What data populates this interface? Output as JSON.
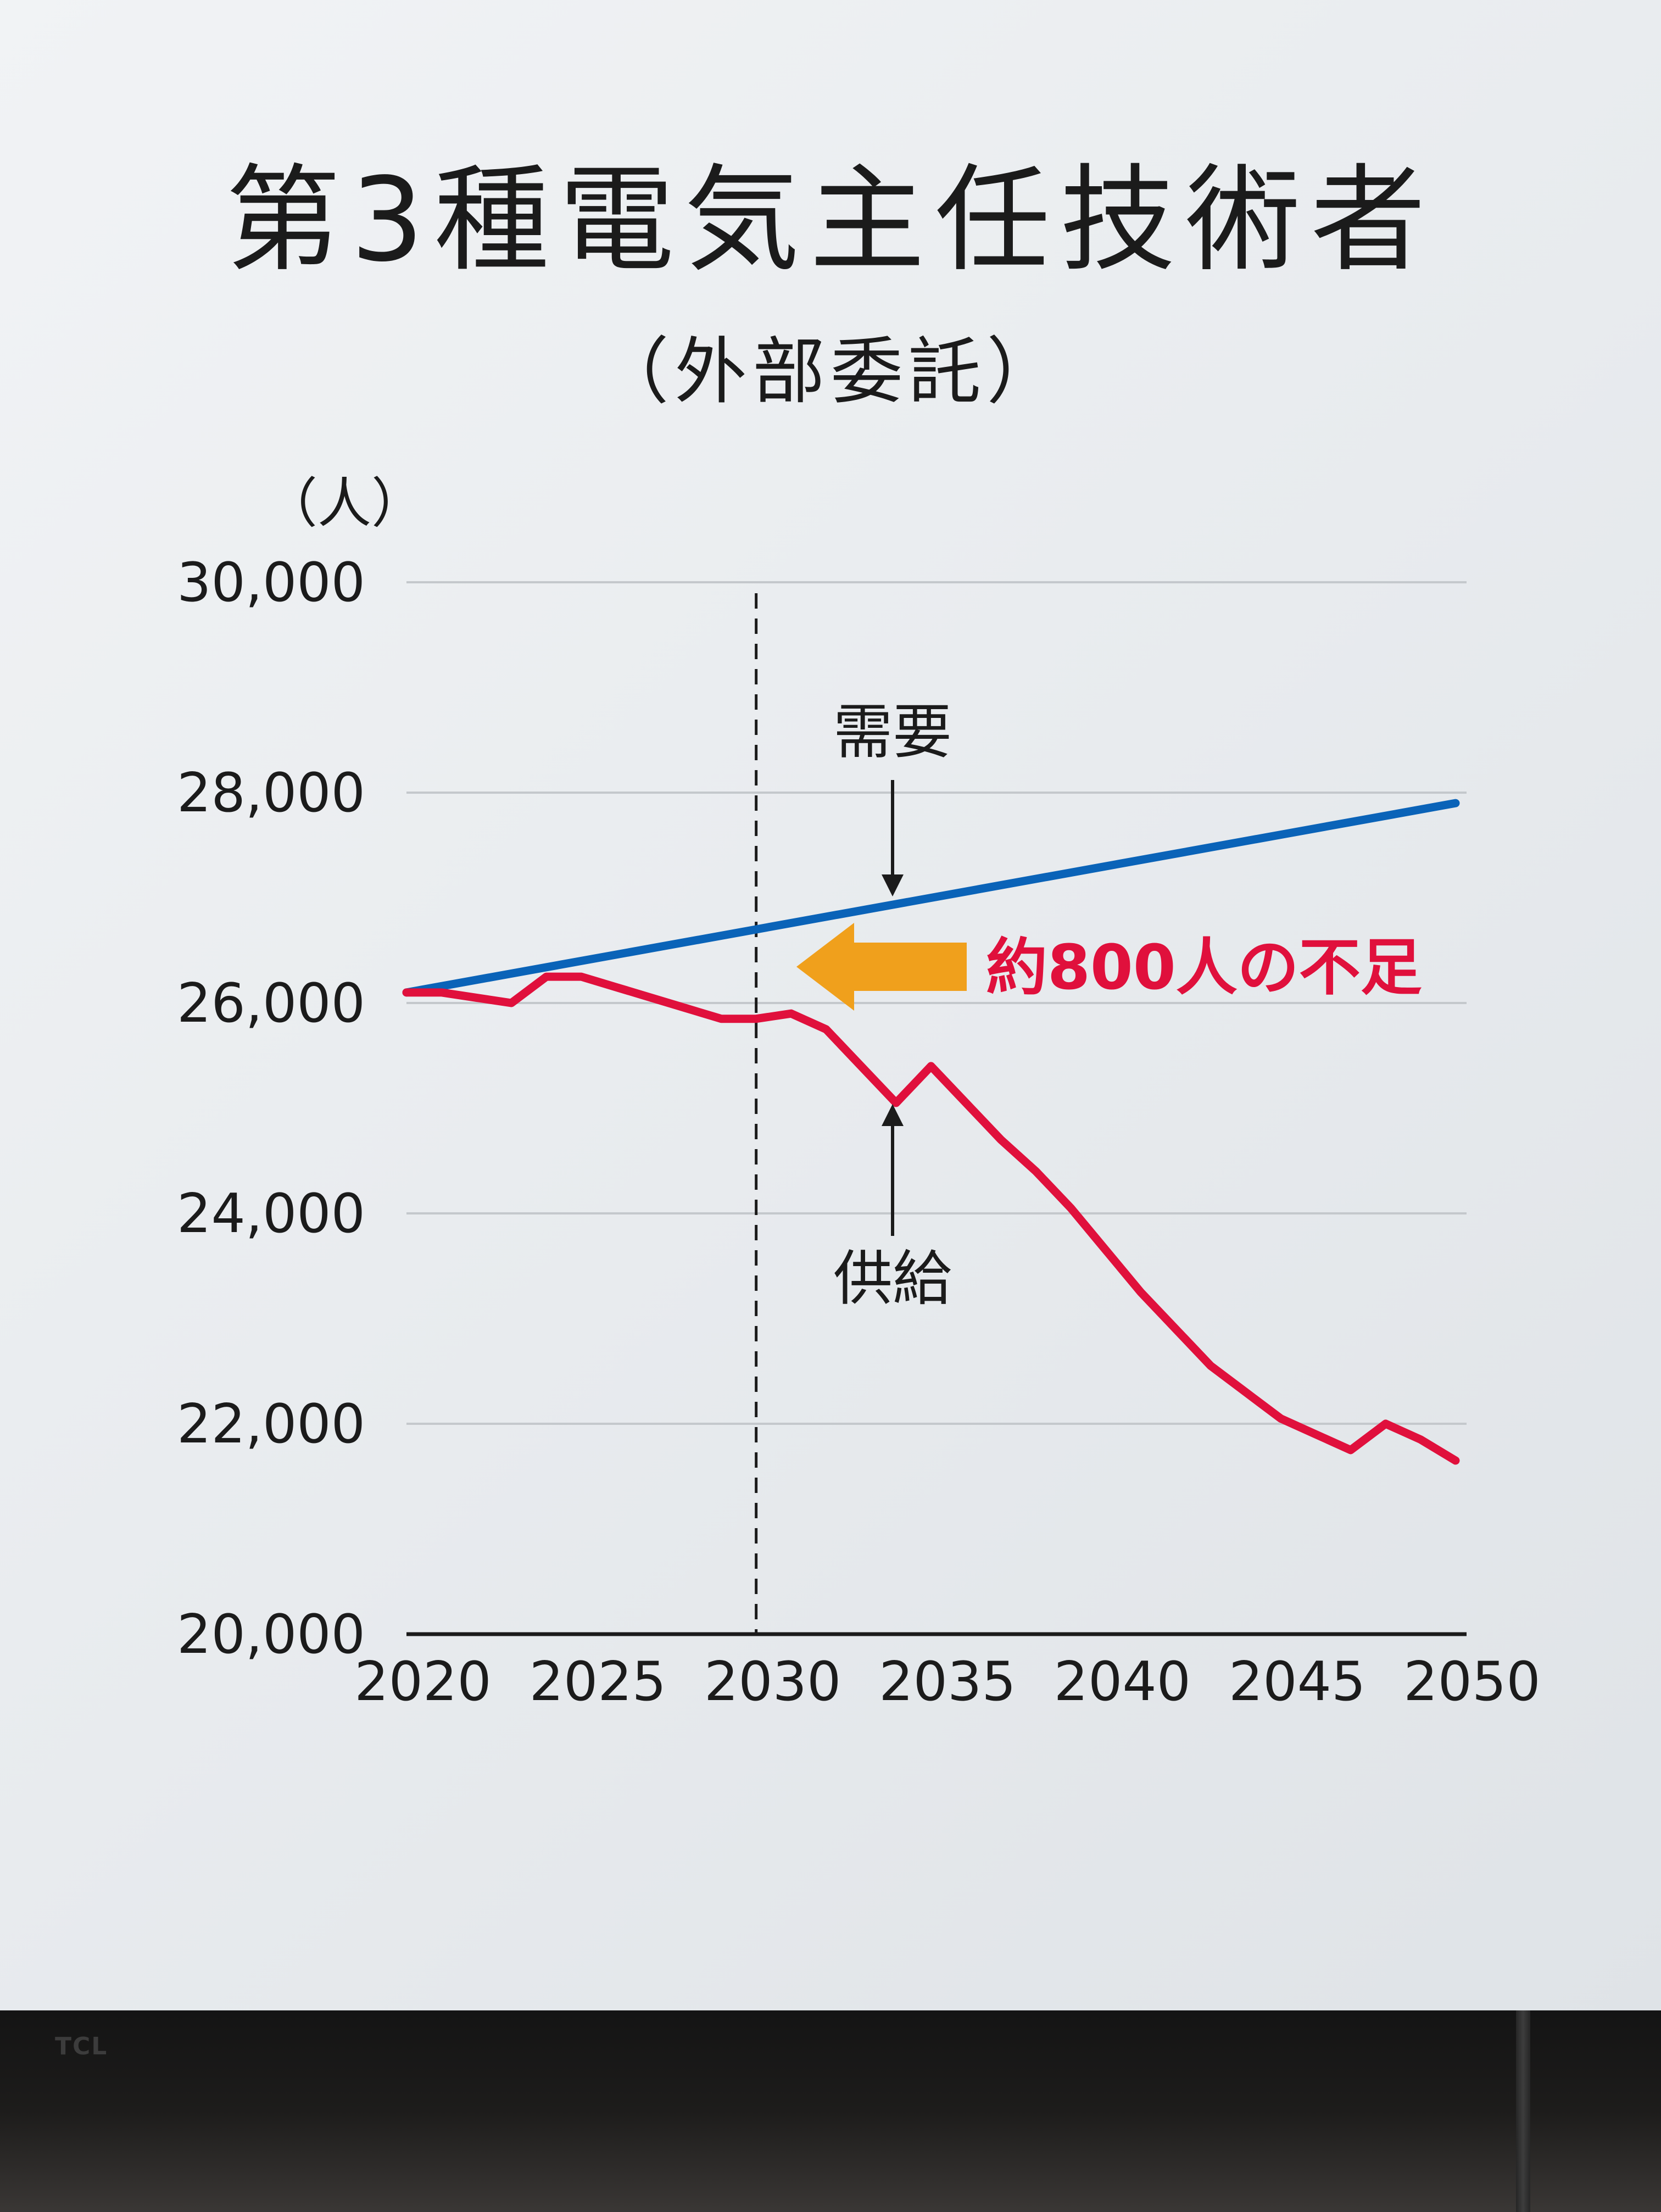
{
  "title": "第3種電気主任技術者",
  "subtitle": "（外部委託）",
  "tv_brand": "TCL",
  "colors": {
    "demand": "#0a63b8",
    "supply": "#e0103c",
    "arrow": "#f0a01c",
    "grid": "#c4c8cc"
  },
  "chart_data": {
    "type": "line",
    "ylabel": "（人）",
    "xlim": [
      2020,
      2050
    ],
    "ylim": [
      20000,
      30000
    ],
    "grid": true,
    "x_ticks": [
      2020,
      2025,
      2030,
      2035,
      2040,
      2045,
      2050
    ],
    "x_tick_labels": [
      "2020",
      "2025",
      "2030",
      "2035",
      "2040",
      "2045",
      "2050"
    ],
    "y_ticks": [
      20000,
      22000,
      24000,
      26000,
      28000,
      30000
    ],
    "y_tick_labels": [
      "20,000",
      "22,000",
      "24,000",
      "26,000",
      "28,000",
      "30,000"
    ],
    "reference_line_x": 2030,
    "series": [
      {
        "name": "需要",
        "color": "#0a63b8",
        "x": [
          2020,
          2050
        ],
        "y": [
          26100,
          27900
        ]
      },
      {
        "name": "供給",
        "color": "#e0103c",
        "x": [
          2020,
          2021,
          2022,
          2023,
          2024,
          2025,
          2026,
          2027,
          2028,
          2029,
          2030,
          2031,
          2032,
          2033,
          2034,
          2035,
          2036,
          2037,
          2038,
          2039,
          2040,
          2041,
          2042,
          2043,
          2044,
          2045,
          2046,
          2047,
          2048,
          2049,
          2050
        ],
        "y": [
          26100,
          26100,
          26050,
          26000,
          26250,
          26250,
          26150,
          26050,
          25950,
          25850,
          25850,
          25900,
          25750,
          25400,
          25050,
          25400,
          25050,
          24700,
          24400,
          24050,
          23650,
          23250,
          22900,
          22550,
          22300,
          22050,
          21900,
          21750,
          22000,
          21850,
          21650
        ]
      }
    ],
    "annotations": {
      "demand_label": "需要",
      "supply_label": "供給",
      "shortage_label": "約800人の不足"
    }
  }
}
